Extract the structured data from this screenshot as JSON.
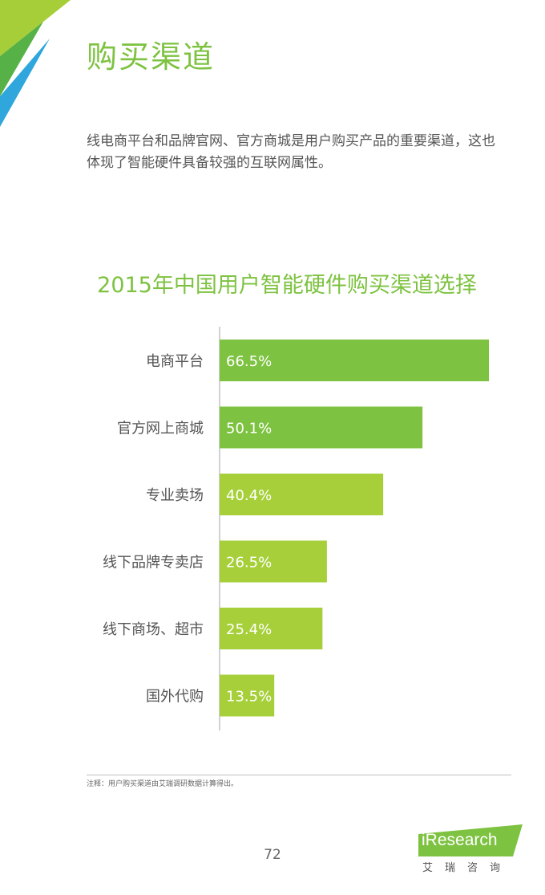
{
  "page": {
    "title": "购买渠道",
    "intro": "线电商平台和品牌官网、官方商城是用户购买产品的重要渠道，这也体现了智能硬件具备较强的互联网属性。",
    "footnote": "注释：用户购买渠道由艾瑞调研数据计算得出。",
    "page_number": "72",
    "logo": {
      "name": "iResearch",
      "subtitle": "艾瑞咨询"
    }
  },
  "colors": {
    "accent": "#7dc240",
    "bar_dark": "#7dc240",
    "bar_light": "#a6cf3a",
    "corner_light": "#a6ce39",
    "corner_dark": "#56b146",
    "corner_blue": "#2fa6dc"
  },
  "chart_data": {
    "type": "bar",
    "orientation": "horizontal",
    "title": "2015年中国用户智能硬件购买渠道选择",
    "categories": [
      "电商平台",
      "官方网上商城",
      "专业卖场",
      "线下品牌专卖店",
      "线下商场、超市",
      "国外代购"
    ],
    "values": [
      66.5,
      50.1,
      40.4,
      26.5,
      25.4,
      13.5
    ],
    "data_labels": [
      "66.5%",
      "50.1%",
      "40.4%",
      "26.5%",
      "25.4%",
      "13.5%"
    ],
    "unit": "%",
    "xlim": [
      0,
      66.5
    ],
    "grid": false,
    "legend": "none"
  }
}
